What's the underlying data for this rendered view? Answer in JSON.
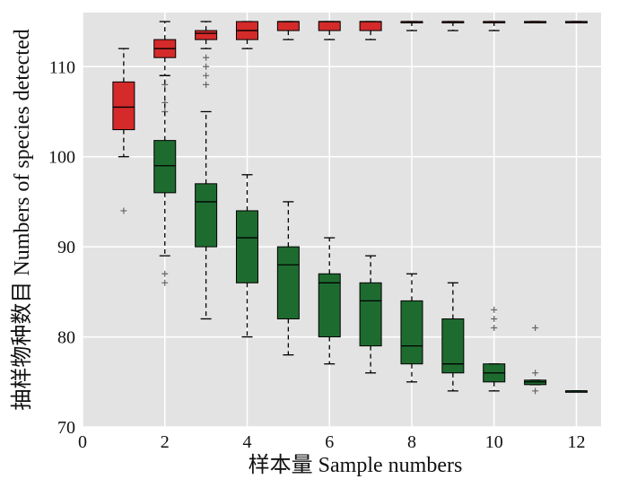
{
  "chart_data": {
    "type": "box",
    "xlabel": "样本量  Sample numbers",
    "ylabel": "抽样物种数目  Numbers of species detected",
    "xlim": [
      0,
      12.6
    ],
    "ylim": [
      70,
      116
    ],
    "x_ticks": [
      0,
      2,
      4,
      6,
      8,
      10,
      12
    ],
    "y_ticks": [
      70,
      80,
      90,
      100,
      110
    ],
    "grid": true,
    "series": [
      {
        "color": "#d42a2a",
        "boxes": [
          {
            "x": 1,
            "q1": 103,
            "median": 105.5,
            "q3": 108.3,
            "whisker_low": 100,
            "whisker_high": 112,
            "outliers": [
              94
            ]
          },
          {
            "x": 2,
            "q1": 111,
            "median": 112,
            "q3": 113,
            "whisker_low": 109,
            "whisker_high": 115,
            "outliers": [
              108,
              106,
              105
            ]
          },
          {
            "x": 3,
            "q1": 113,
            "median": 113.7,
            "q3": 114,
            "whisker_low": 112,
            "whisker_high": 115,
            "outliers": [
              111,
              110,
              109,
              108
            ]
          },
          {
            "x": 4,
            "q1": 113,
            "median": 114,
            "q3": 115,
            "whisker_low": 112,
            "whisker_high": 115,
            "outliers": []
          },
          {
            "x": 5,
            "q1": 114,
            "median": 115,
            "q3": 115,
            "whisker_low": 113,
            "whisker_high": 115,
            "outliers": []
          },
          {
            "x": 6,
            "q1": 114,
            "median": 115,
            "q3": 115,
            "whisker_low": 113,
            "whisker_high": 115,
            "outliers": []
          },
          {
            "x": 7,
            "q1": 114,
            "median": 115,
            "q3": 115,
            "whisker_low": 113,
            "whisker_high": 115,
            "outliers": []
          },
          {
            "x": 8,
            "q1": 115,
            "median": 115,
            "q3": 115,
            "whisker_low": 114,
            "whisker_high": 115,
            "outliers": []
          },
          {
            "x": 9,
            "q1": 115,
            "median": 115,
            "q3": 115,
            "whisker_low": 114,
            "whisker_high": 115,
            "outliers": []
          },
          {
            "x": 10,
            "q1": 115,
            "median": 115,
            "q3": 115,
            "whisker_low": 114,
            "whisker_high": 115,
            "outliers": []
          },
          {
            "x": 11,
            "q1": 115,
            "median": 115,
            "q3": 115,
            "whisker_low": 115,
            "whisker_high": 115,
            "outliers": []
          },
          {
            "x": 12,
            "q1": 115,
            "median": 115,
            "q3": 115,
            "whisker_low": 115,
            "whisker_high": 115,
            "outliers": []
          }
        ]
      },
      {
        "color": "#1e6b30",
        "boxes": [
          {
            "x": 2,
            "q1": 96,
            "median": 99,
            "q3": 101.8,
            "whisker_low": 89,
            "whisker_high": 109,
            "outliers": [
              87,
              86
            ]
          },
          {
            "x": 3,
            "q1": 90,
            "median": 95,
            "q3": 97,
            "whisker_low": 82,
            "whisker_high": 105,
            "outliers": []
          },
          {
            "x": 4,
            "q1": 86,
            "median": 91,
            "q3": 94,
            "whisker_low": 80,
            "whisker_high": 98,
            "outliers": []
          },
          {
            "x": 5,
            "q1": 82,
            "median": 88,
            "q3": 90,
            "whisker_low": 78,
            "whisker_high": 95,
            "outliers": []
          },
          {
            "x": 6,
            "q1": 80,
            "median": 86,
            "q3": 87,
            "whisker_low": 77,
            "whisker_high": 91,
            "outliers": []
          },
          {
            "x": 7,
            "q1": 79,
            "median": 84,
            "q3": 86,
            "whisker_low": 76,
            "whisker_high": 89,
            "outliers": []
          },
          {
            "x": 8,
            "q1": 77,
            "median": 79,
            "q3": 84,
            "whisker_low": 75,
            "whisker_high": 87,
            "outliers": []
          },
          {
            "x": 9,
            "q1": 76,
            "median": 77,
            "q3": 82,
            "whisker_low": 74,
            "whisker_high": 86,
            "outliers": []
          },
          {
            "x": 10,
            "q1": 75,
            "median": 76,
            "q3": 77,
            "whisker_low": 74,
            "whisker_high": 77,
            "outliers": [
              81,
              82,
              83
            ]
          },
          {
            "x": 11,
            "q1": 74.7,
            "median": 75,
            "q3": 75.2,
            "whisker_low": 74.7,
            "whisker_high": 75.2,
            "outliers": [
              74,
              76,
              81
            ]
          },
          {
            "x": 12,
            "q1": 74,
            "median": 74,
            "q3": 74,
            "whisker_low": 74,
            "whisker_high": 74,
            "outliers": []
          }
        ]
      }
    ]
  }
}
